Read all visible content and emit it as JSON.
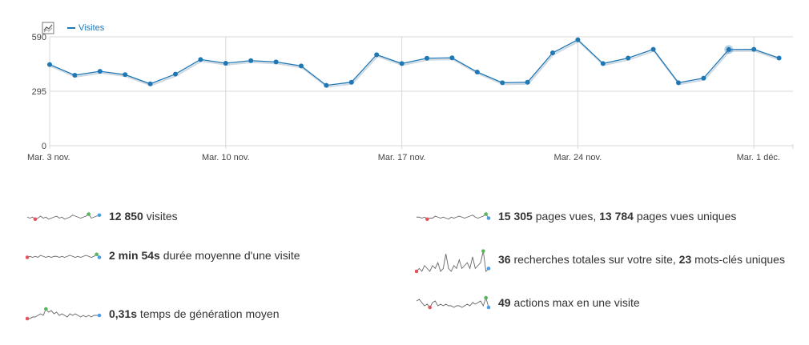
{
  "chart_data": {
    "type": "line",
    "title": "",
    "legend": "Visites",
    "legend_position": "top-left",
    "y_ticks": [
      0,
      295,
      590
    ],
    "y_tick_labels": [
      "0",
      "295",
      "590"
    ],
    "ylim": [
      0,
      590
    ],
    "x_tick_labels": [
      "Mar. 3 nov.",
      "Mar. 10 nov.",
      "Mar. 17 nov.",
      "Mar. 24 nov.",
      "Mar. 1 déc."
    ],
    "x_tick_indices": [
      0,
      7,
      14,
      21,
      28
    ],
    "series": [
      {
        "name": "Visites",
        "color": "#1f77b4",
        "values": [
          440,
          382,
          403,
          385,
          335,
          388,
          467,
          447,
          461,
          454,
          432,
          327,
          344,
          493,
          445,
          474,
          476,
          399,
          341,
          344,
          503,
          574,
          445,
          475,
          522,
          341,
          366,
          521,
          522,
          475
        ]
      }
    ],
    "grid": true
  },
  "stats": [
    {
      "bold": "12 850",
      "text": " visites",
      "bold2": "",
      "text2": ""
    },
    {
      "bold": "15 305",
      "text": " pages vues, ",
      "bold2": "13 784",
      "text2": " pages vues uniques"
    },
    {
      "bold": "2 min 54s",
      "text": " durée moyenne d'une visite",
      "bold2": "",
      "text2": ""
    },
    {
      "bold": "36",
      "text": " recherches totales sur votre site, ",
      "bold2": "23",
      "text2": " mots-clés uniques"
    },
    {
      "bold": "0,31s",
      "text": " temps de génération moyen",
      "bold2": "",
      "text2": ""
    },
    {
      "bold": "49",
      "text": " actions max en une visite",
      "bold2": "",
      "text2": ""
    }
  ],
  "sparkline_colors": {
    "min": "#e8525a",
    "max": "#57b65a",
    "last": "#4a9ee6",
    "line": "#666666"
  }
}
